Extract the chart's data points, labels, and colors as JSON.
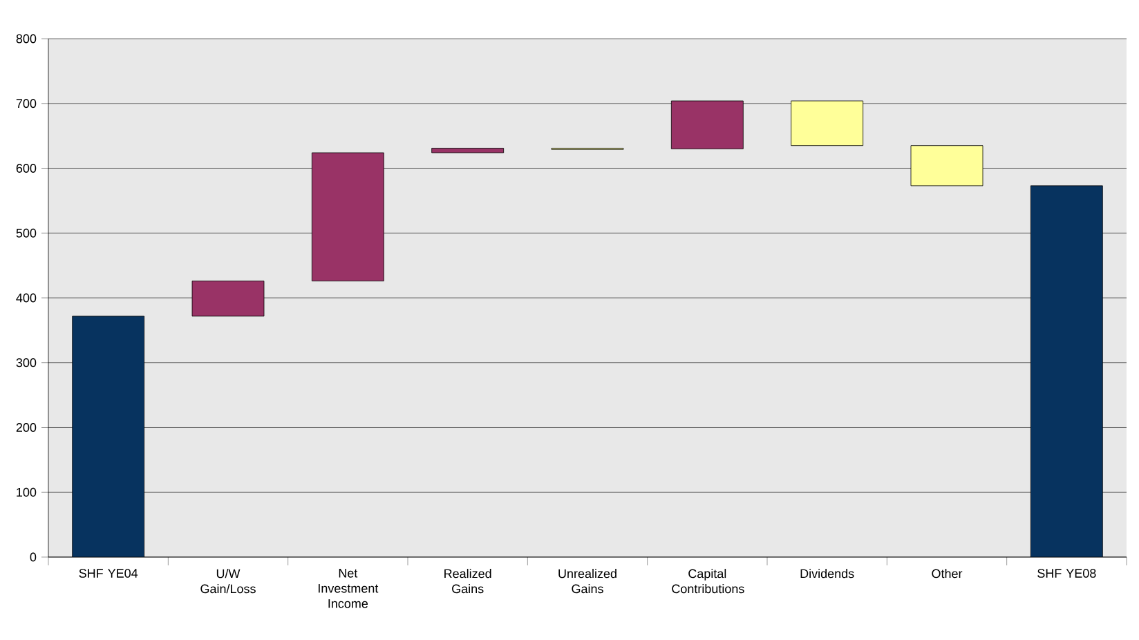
{
  "chart_data": {
    "type": "bar",
    "categories": [
      "SHF YE04",
      "U/W Gain/Loss",
      "Net Investment Income",
      "Realized Gains",
      "Unrealized Gains",
      "Capital Contributions",
      "Dividends",
      "Other",
      "SHF YE08"
    ],
    "values": [
      372,
      54,
      198,
      7,
      -2,
      74,
      -69,
      -62,
      573
    ],
    "base": [
      0,
      372,
      426,
      624,
      631,
      630,
      704,
      635,
      0
    ],
    "colors": [
      "#07335f",
      "#993366",
      "#993366",
      "#993366",
      "#ffff99",
      "#993366",
      "#ffff99",
      "#ffff99",
      "#07335f"
    ],
    "ylim": [
      0,
      800
    ],
    "yticks": [
      0,
      100,
      200,
      300,
      400,
      500,
      600,
      700,
      800
    ],
    "grid": "y"
  }
}
